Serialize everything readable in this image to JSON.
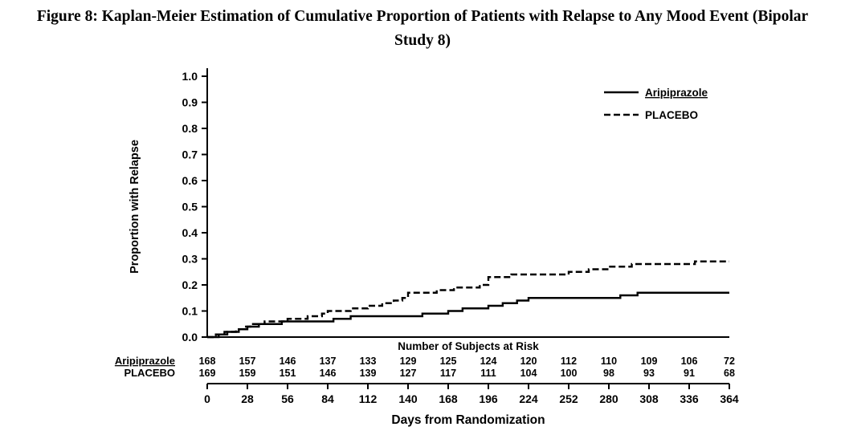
{
  "title": "Figure 8: Kaplan-Meier Estimation of Cumulative Proportion of Patients with Relapse to Any Mood Event (Bipolar Study 8)",
  "colors": {
    "line": "#000000",
    "background": "#ffffff",
    "text": "#000000"
  },
  "chart_data": {
    "type": "line",
    "subtype": "kaplan-meier-step",
    "title": "",
    "xlabel": "Days from Randomization",
    "ylabel": "Proportion with Relapse",
    "xlim": [
      0,
      364
    ],
    "ylim": [
      0.0,
      1.0
    ],
    "xticks": [
      0,
      28,
      56,
      84,
      112,
      140,
      168,
      196,
      224,
      252,
      280,
      308,
      336,
      364
    ],
    "yticks": [
      0.0,
      0.1,
      0.2,
      0.3,
      0.4,
      0.5,
      0.6,
      0.7,
      0.8,
      0.9,
      1.0
    ],
    "grid": false,
    "legend_position": "top-right",
    "legend": [
      {
        "name": "Aripiprazole",
        "style": "solid",
        "underline": true
      },
      {
        "name": "PLACEBO",
        "style": "dashed",
        "underline": false
      }
    ],
    "series": [
      {
        "name": "Aripiprazole",
        "style": "solid",
        "points": [
          [
            0,
            0
          ],
          [
            8,
            0.01
          ],
          [
            14,
            0.02
          ],
          [
            22,
            0.03
          ],
          [
            28,
            0.04
          ],
          [
            36,
            0.05
          ],
          [
            52,
            0.06
          ],
          [
            88,
            0.07
          ],
          [
            100,
            0.08
          ],
          [
            150,
            0.09
          ],
          [
            168,
            0.1
          ],
          [
            178,
            0.11
          ],
          [
            196,
            0.12
          ],
          [
            206,
            0.13
          ],
          [
            216,
            0.14
          ],
          [
            224,
            0.15
          ],
          [
            288,
            0.16
          ],
          [
            300,
            0.17
          ],
          [
            364,
            0.17
          ]
        ]
      },
      {
        "name": "PLACEBO",
        "style": "dashed",
        "points": [
          [
            0,
            0
          ],
          [
            6,
            0.01
          ],
          [
            12,
            0.02
          ],
          [
            20,
            0.03
          ],
          [
            26,
            0.04
          ],
          [
            30,
            0.05
          ],
          [
            40,
            0.06
          ],
          [
            56,
            0.07
          ],
          [
            70,
            0.08
          ],
          [
            80,
            0.09
          ],
          [
            84,
            0.1
          ],
          [
            100,
            0.11
          ],
          [
            112,
            0.12
          ],
          [
            122,
            0.13
          ],
          [
            130,
            0.14
          ],
          [
            136,
            0.15
          ],
          [
            140,
            0.17
          ],
          [
            160,
            0.18
          ],
          [
            172,
            0.19
          ],
          [
            190,
            0.2
          ],
          [
            196,
            0.23
          ],
          [
            212,
            0.24
          ],
          [
            252,
            0.25
          ],
          [
            266,
            0.26
          ],
          [
            280,
            0.27
          ],
          [
            296,
            0.28
          ],
          [
            340,
            0.29
          ],
          [
            364,
            0.29
          ]
        ]
      }
    ],
    "risk_table": {
      "header": "Number of Subjects at Risk",
      "rows": [
        {
          "label": "Aripiprazole",
          "underline": true,
          "counts": [
            168,
            157,
            146,
            137,
            133,
            129,
            125,
            124,
            120,
            112,
            110,
            109,
            106,
            72
          ]
        },
        {
          "label": "PLACEBO",
          "underline": false,
          "counts": [
            169,
            159,
            151,
            146,
            139,
            127,
            117,
            111,
            104,
            100,
            98,
            93,
            91,
            68
          ]
        }
      ]
    }
  }
}
